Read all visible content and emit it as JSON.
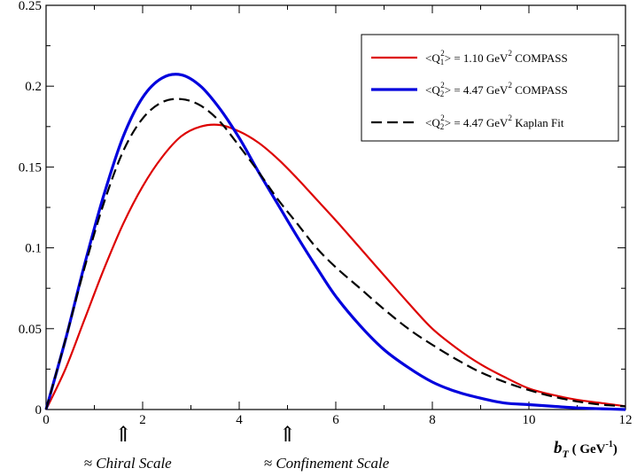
{
  "chart_data": {
    "type": "line",
    "xlabel_main": "b",
    "xlabel_sub": "T",
    "xlabel_unit": "( GeV",
    "xlabel_unit_sup": "-1",
    "xlabel_unit_close": ")",
    "xlim": [
      0,
      12
    ],
    "ylim": [
      0,
      0.25
    ],
    "x_ticks": [
      0,
      2,
      4,
      6,
      8,
      10,
      12
    ],
    "x_tick_labels": [
      "0",
      "2",
      "4",
      "6",
      "8",
      "10",
      "12"
    ],
    "y_ticks": [
      0,
      0.05,
      0.1,
      0.15,
      0.2,
      0.25
    ],
    "y_tick_labels": [
      "0",
      "0.05",
      "0.1",
      "0.15",
      "0.2",
      "0.25"
    ],
    "grid": false,
    "legend_position": "top-right",
    "series": [
      {
        "name": "<Q1^2> = 1.10 GeV^2 COMPASS",
        "legend": {
          "pre": "<Q",
          "sub": "1",
          "sup": "2",
          "mid": "> = 1.10 GeV",
          "unit_sup": "2",
          "post": " COMPASS"
        },
        "color": "#dd0000",
        "style": "solid",
        "x": [
          0,
          0.4,
          0.8,
          1.2,
          1.6,
          2.0,
          2.4,
          2.8,
          3.2,
          3.6,
          4.0,
          4.4,
          4.8,
          5.2,
          5.6,
          6.0,
          6.5,
          7.0,
          7.5,
          8.0,
          8.5,
          9.0,
          9.5,
          10.0,
          10.5,
          11.0,
          11.5,
          12.0
        ],
        "y": [
          0,
          0.025,
          0.056,
          0.087,
          0.115,
          0.138,
          0.156,
          0.169,
          0.175,
          0.176,
          0.172,
          0.165,
          0.155,
          0.143,
          0.13,
          0.117,
          0.1,
          0.083,
          0.066,
          0.05,
          0.038,
          0.028,
          0.02,
          0.013,
          0.009,
          0.006,
          0.004,
          0.002
        ]
      },
      {
        "name": "<Q2^2> = 4.47 GeV^2 COMPASS",
        "legend": {
          "pre": "<Q",
          "sub": "2",
          "sup": "2",
          "mid": "> = 4.47  GeV",
          "unit_sup": "2",
          "post": " COMPASS"
        },
        "color": "#0000dd",
        "style": "solid",
        "x": [
          0,
          0.4,
          0.8,
          1.2,
          1.6,
          2.0,
          2.4,
          2.8,
          3.2,
          3.6,
          4.0,
          4.4,
          4.8,
          5.2,
          5.6,
          6.0,
          6.5,
          7.0,
          7.5,
          8.0,
          8.5,
          9.0,
          9.5,
          10.0,
          10.5,
          11.0,
          11.5,
          12.0
        ],
        "y": [
          0,
          0.043,
          0.09,
          0.133,
          0.169,
          0.193,
          0.205,
          0.207,
          0.2,
          0.186,
          0.168,
          0.147,
          0.127,
          0.107,
          0.088,
          0.07,
          0.052,
          0.037,
          0.026,
          0.017,
          0.011,
          0.007,
          0.004,
          0.003,
          0.002,
          0.001,
          0.0005,
          0
        ]
      },
      {
        "name": "<Q2^2> = 4.47 GeV^2 Kaplan Fit",
        "legend": {
          "pre": "<Q",
          "sub": "2",
          "sup": "2",
          "mid": "> = 4.47  GeV",
          "unit_sup": "2",
          "post": "  Kaplan Fit"
        },
        "color": "#000000",
        "style": "dashed",
        "x": [
          0,
          0.4,
          0.8,
          1.2,
          1.6,
          2.0,
          2.4,
          2.8,
          3.2,
          3.6,
          4.0,
          4.4,
          4.8,
          5.2,
          5.6,
          6.0,
          6.5,
          7.0,
          7.5,
          8.0,
          8.5,
          9.0,
          9.5,
          10.0,
          10.5,
          11.0,
          11.5,
          12.0
        ],
        "y": [
          0,
          0.043,
          0.088,
          0.128,
          0.16,
          0.18,
          0.19,
          0.192,
          0.188,
          0.178,
          0.163,
          0.147,
          0.13,
          0.115,
          0.1,
          0.088,
          0.075,
          0.062,
          0.05,
          0.04,
          0.031,
          0.023,
          0.017,
          0.012,
          0.008,
          0.005,
          0.003,
          0.002
        ]
      }
    ],
    "annotations": [
      {
        "arrow": "⇑",
        "text": "≈ Chiral Scale",
        "x": 1.6
      },
      {
        "arrow": "⇑",
        "text": "≈ Confinement Scale",
        "x": 5.0
      }
    ]
  }
}
